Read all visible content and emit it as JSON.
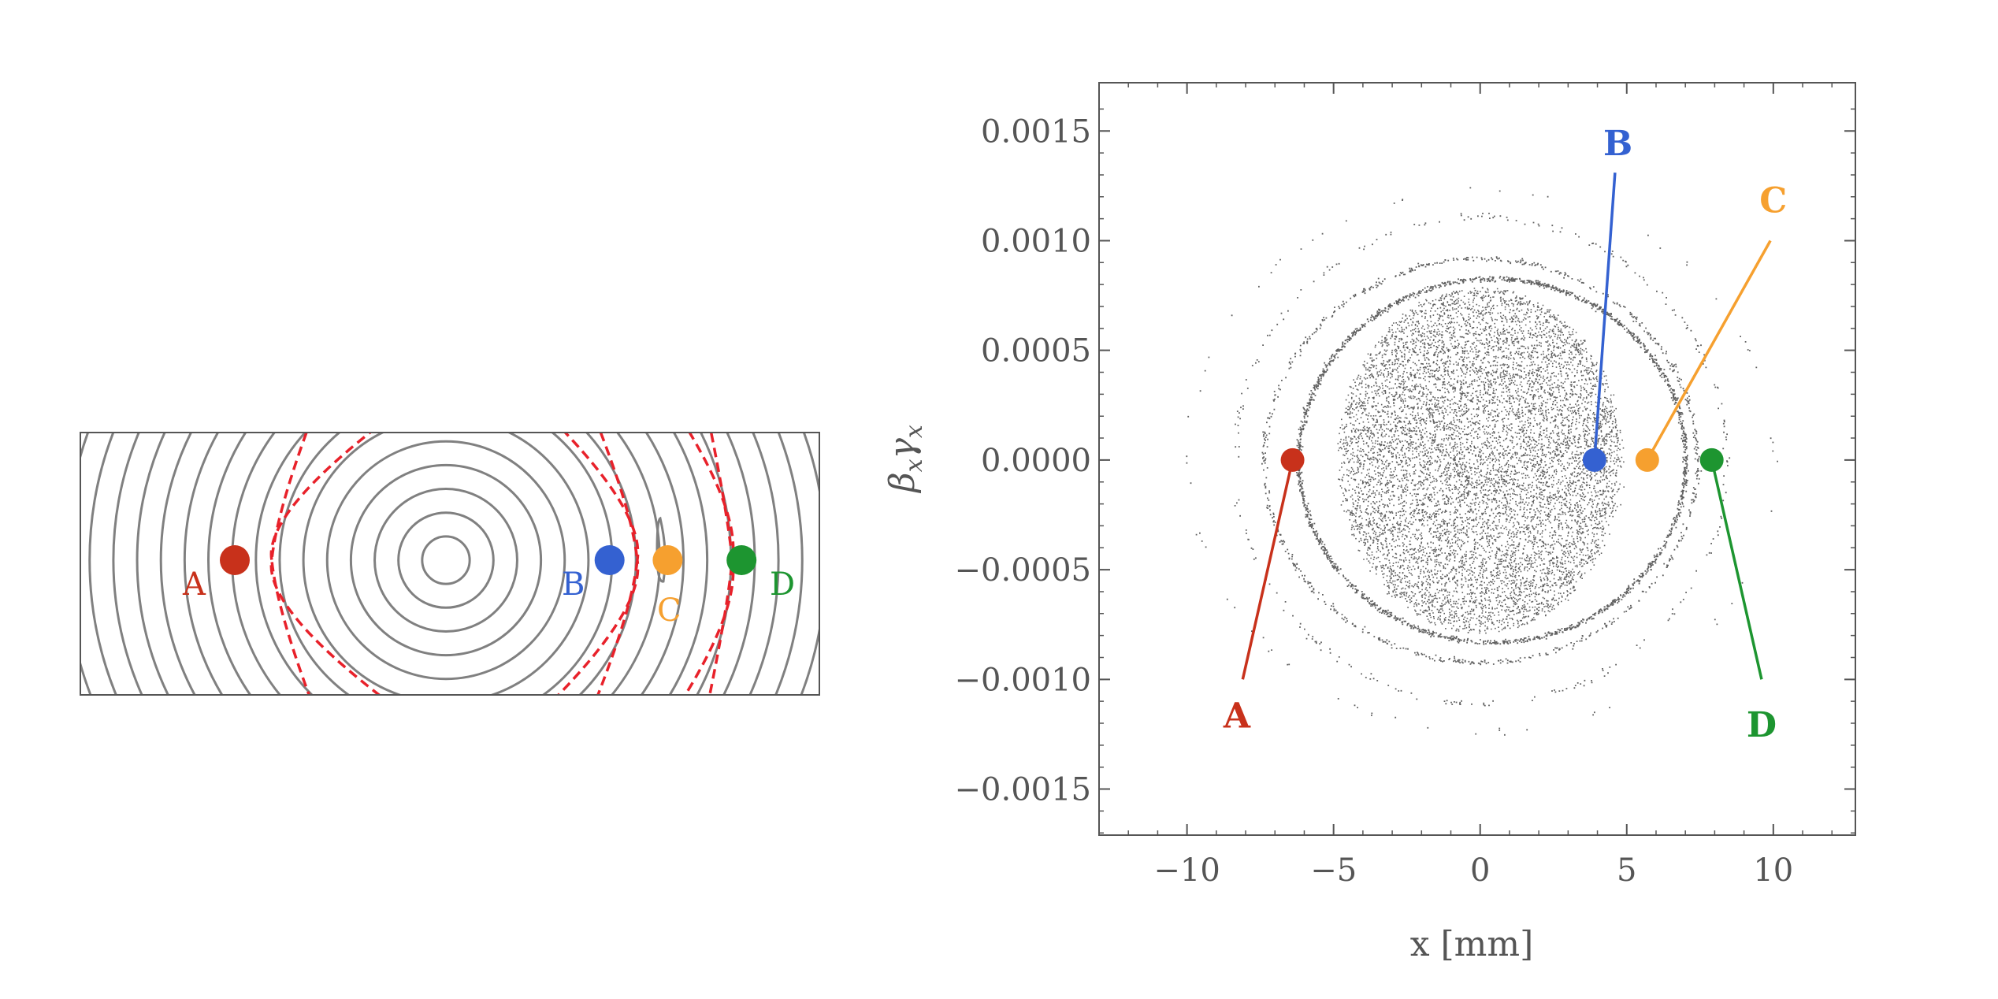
{
  "colors": {
    "A": "#c8311b",
    "B": "#3461d1",
    "C": "#f6a02f",
    "D": "#1d9530",
    "contour": "#808080",
    "separatrix": "#e8212a",
    "scatter": "#444444",
    "frame": "#555555"
  },
  "chart_data": [
    {
      "type": "contour",
      "title": "",
      "center": [
        0,
        0
      ],
      "contour_radii": [
        0.9,
        1.8,
        2.7,
        3.6,
        4.5,
        5.4,
        6.3,
        7.2,
        8.1,
        9.0,
        9.9,
        10.8,
        11.7,
        12.6,
        13.5,
        14.4,
        15.3
      ],
      "separatrix": {
        "style": "dashed",
        "pairs": [
          {
            "inner": 5.8,
            "outer": 7.4,
            "side": "left"
          },
          {
            "inner": 6.7,
            "outer": 7.8,
            "side": "right"
          },
          {
            "inner": 10.4,
            "outer": 11.3,
            "side": "right"
          }
        ]
      },
      "island": {
        "near": "C",
        "x": 9.9
      },
      "points": [
        {
          "label": "A",
          "x": -8.0,
          "y": 0
        },
        {
          "label": "B",
          "x": 6.2,
          "y": 0
        },
        {
          "label": "C",
          "x": 8.4,
          "y": 0
        },
        {
          "label": "D",
          "x": 11.2,
          "y": 0
        }
      ]
    },
    {
      "type": "scatter",
      "title": "",
      "xlabel": "x [mm]",
      "ylabel": "β_x γ_x",
      "xlim": [
        -13,
        12.8
      ],
      "ylim": [
        -0.00171,
        0.00172
      ],
      "xticks": [
        -10,
        -5,
        0,
        5,
        10
      ],
      "yticks": [
        0.0015,
        0.001,
        0.0005,
        0,
        -0.0005,
        -0.001,
        -0.0015
      ],
      "xtick_labels": [
        "−10",
        "−5",
        "0",
        "5",
        "10"
      ],
      "ytick_labels": [
        "0.0015",
        "0.0010",
        "0.0005",
        "0.0000",
        "−0.0005",
        "−0.0010",
        "−0.0015"
      ],
      "grid": false,
      "scatter_core": {
        "rx": 4.8,
        "ry": 0.00079,
        "count": 9000
      },
      "scatter_rings": [
        {
          "rx": 6.6,
          "ry": 0.00083,
          "count": 1800
        },
        {
          "rx": 7.4,
          "ry": 0.00092,
          "count": 700
        },
        {
          "rx": 8.4,
          "ry": 0.00111,
          "count": 260
        },
        {
          "rx": 10.0,
          "ry": 0.00124,
          "count": 70
        }
      ],
      "points": [
        {
          "label": "A",
          "x": -6.4,
          "y": 0,
          "label_x": -8.3,
          "label_y": -0.00117,
          "line_end_x": -8.1,
          "line_end_y": -0.001
        },
        {
          "label": "B",
          "x": 3.9,
          "y": 0,
          "label_x": 4.7,
          "label_y": 0.00144,
          "line_end_x": 4.6,
          "line_end_y": 0.00131
        },
        {
          "label": "C",
          "x": 5.7,
          "y": 0,
          "label_x": 10.0,
          "label_y": 0.00118,
          "line_end_x": 9.9,
          "line_end_y": 0.001
        },
        {
          "label": "D",
          "x": 7.9,
          "y": 0,
          "label_x": 9.6,
          "label_y": -0.00121,
          "line_end_x": 9.6,
          "line_end_y": -0.001
        }
      ]
    }
  ]
}
